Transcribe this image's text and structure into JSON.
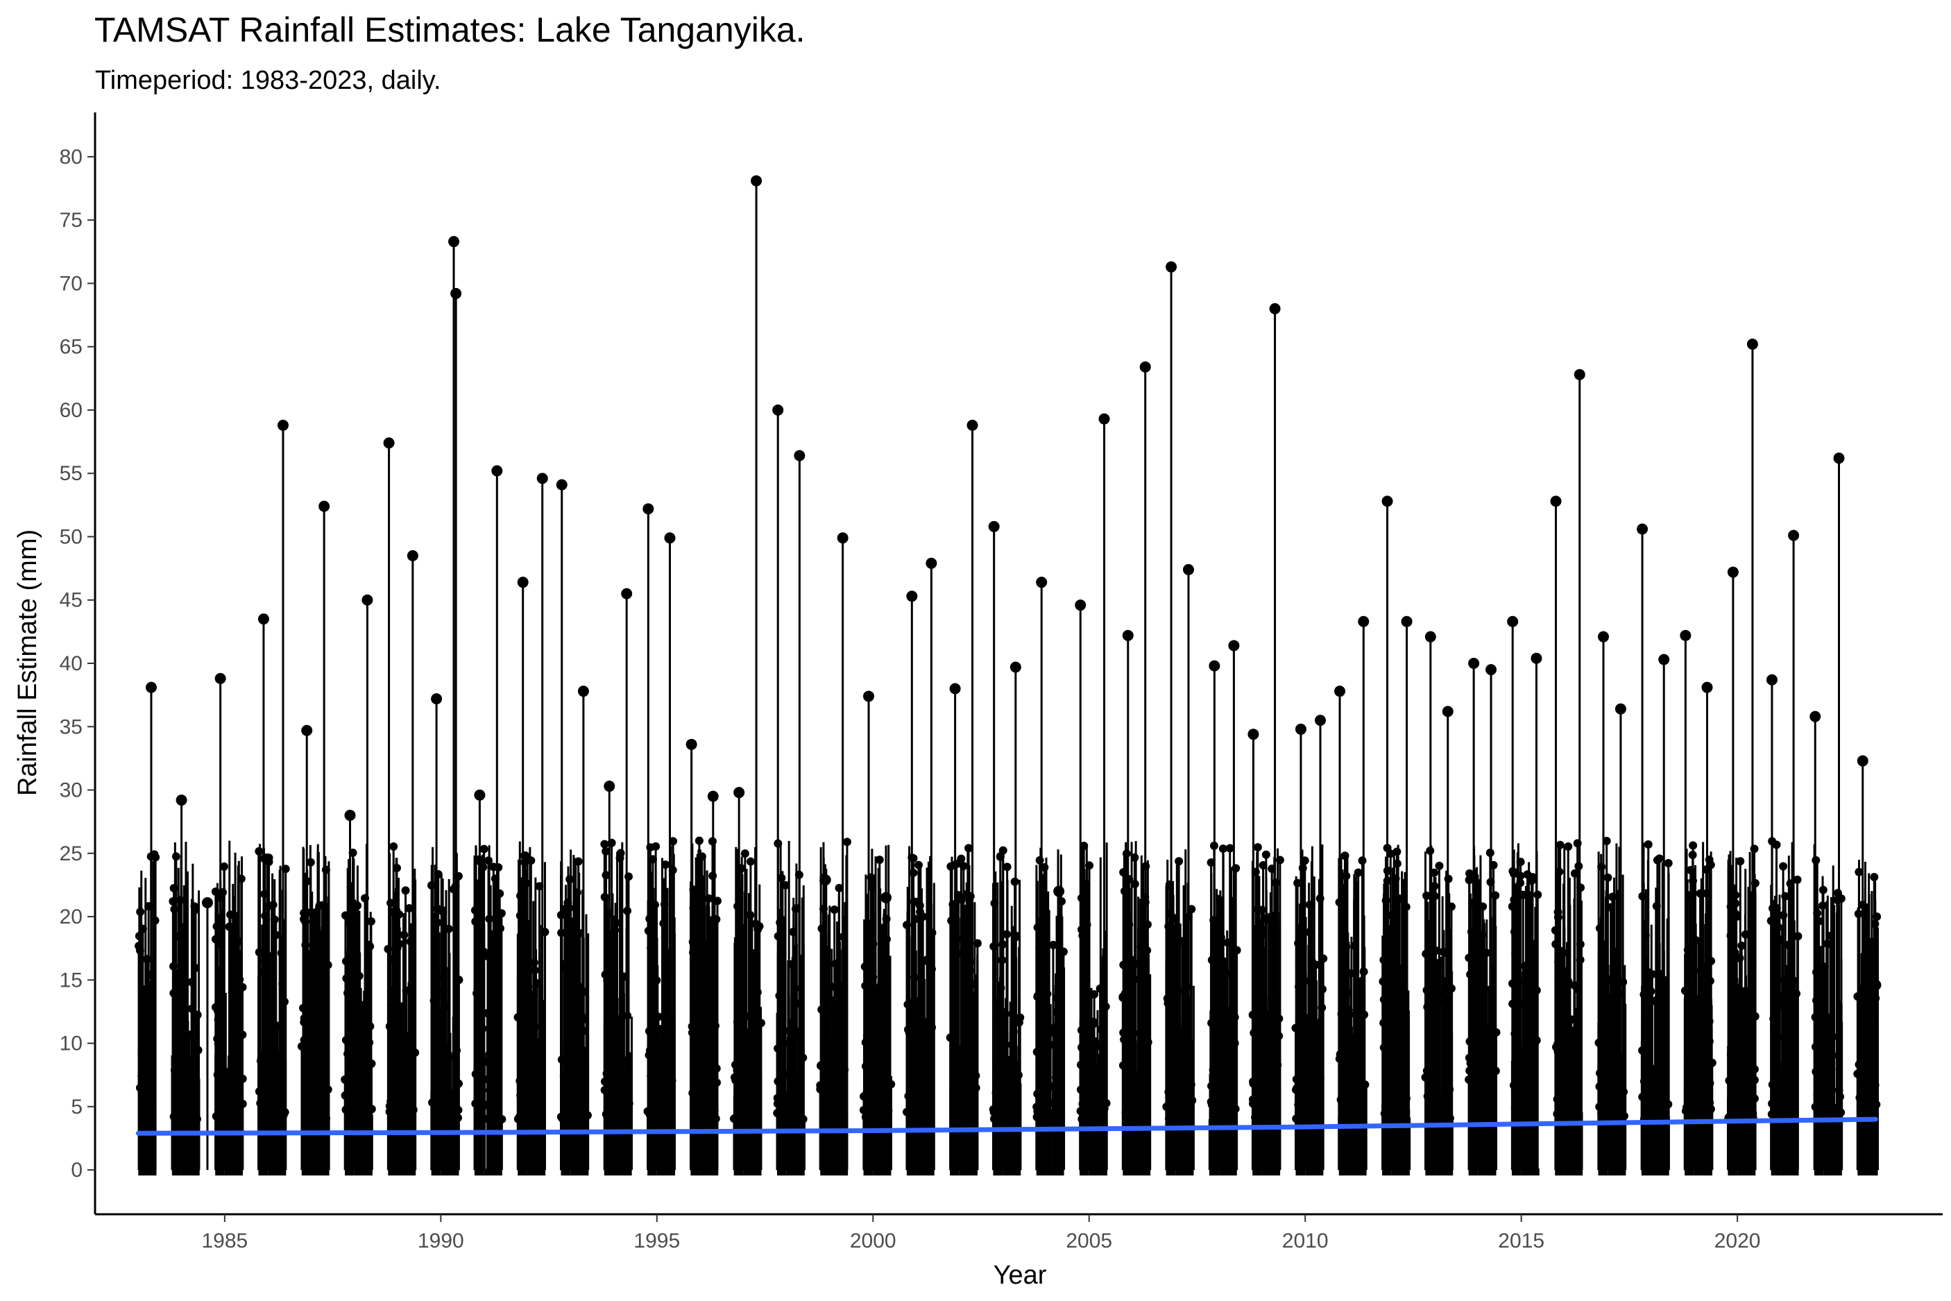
{
  "chart_data": {
    "type": "line",
    "title": "TAMSAT Rainfall Estimates: Lake Tanganyika.",
    "subtitle": "Timeperiod: 1983-2023, daily.",
    "xlabel": "Year",
    "ylabel": "Rainfall Estimate (mm)",
    "xlim": [
      1982.0,
      2024.75
    ],
    "ylim": [
      -3.5,
      83.5
    ],
    "x_ticks": [
      1985,
      1990,
      1995,
      2000,
      2005,
      2010,
      2015,
      2020
    ],
    "y_ticks": [
      0,
      5,
      10,
      15,
      20,
      25,
      30,
      35,
      40,
      45,
      50,
      55,
      60,
      65,
      70,
      75,
      80
    ],
    "grid": false,
    "legend": "none",
    "series": [
      {
        "kind": "annual-peak-rainfall",
        "color": "#000000",
        "points": [
          [
            1983.3,
            38.1
          ],
          [
            1984.0,
            29.2
          ],
          [
            1984.6,
            21.1
          ],
          [
            1984.9,
            38.8
          ],
          [
            1985.9,
            43.5
          ],
          [
            1986.35,
            58.8
          ],
          [
            1986.9,
            34.7
          ],
          [
            1987.3,
            52.4
          ],
          [
            1987.9,
            28.0
          ],
          [
            1988.3,
            45.0
          ],
          [
            1988.8,
            57.4
          ],
          [
            1989.35,
            48.5
          ],
          [
            1989.9,
            37.2
          ],
          [
            1990.3,
            73.3
          ],
          [
            1990.35,
            69.2
          ],
          [
            1990.9,
            29.6
          ],
          [
            1991.3,
            55.2
          ],
          [
            1991.9,
            46.4
          ],
          [
            1992.35,
            54.6
          ],
          [
            1992.8,
            54.1
          ],
          [
            1993.3,
            37.8
          ],
          [
            1993.9,
            30.3
          ],
          [
            1994.3,
            45.5
          ],
          [
            1994.8,
            52.2
          ],
          [
            1995.3,
            49.9
          ],
          [
            1995.8,
            33.6
          ],
          [
            1996.3,
            29.5
          ],
          [
            1996.9,
            29.8
          ],
          [
            1997.3,
            78.1
          ],
          [
            1997.8,
            60.0
          ],
          [
            1998.3,
            56.4
          ],
          [
            1998.9,
            22.9
          ],
          [
            1999.3,
            49.9
          ],
          [
            1999.9,
            37.4
          ],
          [
            2000.3,
            21.5
          ],
          [
            2000.9,
            45.3
          ],
          [
            2001.35,
            47.9
          ],
          [
            2001.9,
            38.0
          ],
          [
            2002.3,
            58.8
          ],
          [
            2002.8,
            50.8
          ],
          [
            2003.3,
            39.7
          ],
          [
            2003.9,
            46.4
          ],
          [
            2004.3,
            22.0
          ],
          [
            2004.8,
            44.6
          ],
          [
            2005.35,
            59.3
          ],
          [
            2005.9,
            42.2
          ],
          [
            2006.3,
            63.4
          ],
          [
            2006.9,
            71.3
          ],
          [
            2007.3,
            47.4
          ],
          [
            2007.9,
            39.8
          ],
          [
            2008.35,
            41.4
          ],
          [
            2008.8,
            34.4
          ],
          [
            2009.3,
            68.0
          ],
          [
            2009.9,
            34.8
          ],
          [
            2010.35,
            35.5
          ],
          [
            2010.8,
            37.8
          ],
          [
            2011.35,
            43.3
          ],
          [
            2011.9,
            52.8
          ],
          [
            2012.35,
            43.3
          ],
          [
            2012.9,
            42.1
          ],
          [
            2013.3,
            36.2
          ],
          [
            2013.9,
            40.0
          ],
          [
            2014.3,
            39.5
          ],
          [
            2014.8,
            43.3
          ],
          [
            2015.35,
            40.4
          ],
          [
            2015.8,
            52.8
          ],
          [
            2016.35,
            62.8
          ],
          [
            2016.9,
            42.1
          ],
          [
            2017.3,
            36.4
          ],
          [
            2017.8,
            50.6
          ],
          [
            2018.3,
            40.3
          ],
          [
            2018.8,
            42.2
          ],
          [
            2019.3,
            38.1
          ],
          [
            2019.9,
            47.2
          ],
          [
            2020.35,
            65.2
          ],
          [
            2020.8,
            38.7
          ],
          [
            2021.3,
            50.1
          ],
          [
            2021.8,
            35.8
          ],
          [
            2022.35,
            56.2
          ],
          [
            2022.9,
            32.3
          ],
          [
            2023.2,
            14.6
          ]
        ]
      },
      {
        "kind": "trend",
        "color": "#3366ff",
        "x": [
          1983.0,
          1990.0,
          2000.0,
          2010.0,
          2023.2
        ],
        "values": [
          2.9,
          2.95,
          3.1,
          3.4,
          4.0
        ]
      }
    ]
  }
}
